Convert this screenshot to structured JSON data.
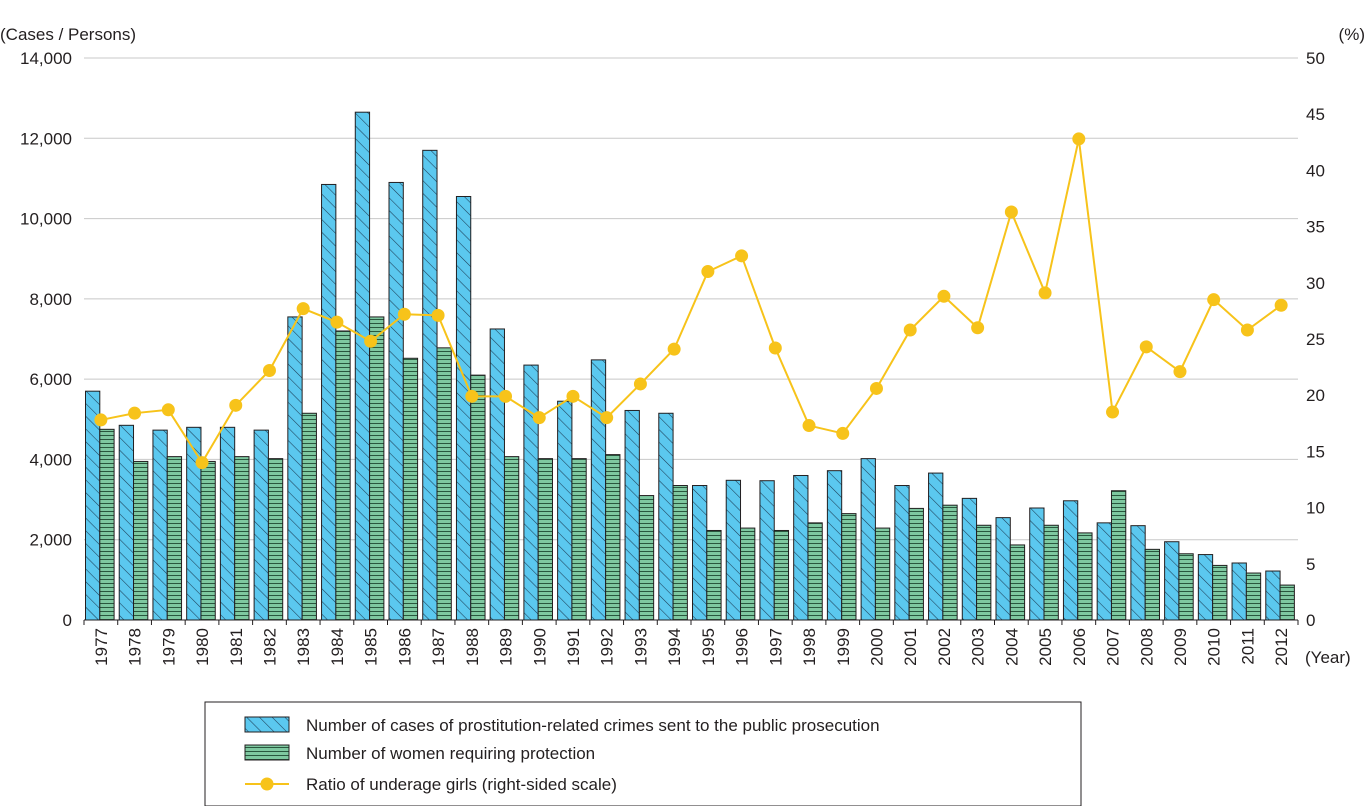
{
  "chart_data": {
    "type": "bar",
    "left_axis_unit": "(Cases / Persons)",
    "right_axis_unit": "(%)",
    "x_axis_unit": "(Year)",
    "categories": [
      "1977",
      "1978",
      "1979",
      "1980",
      "1981",
      "1982",
      "1983",
      "1984",
      "1985",
      "1986",
      "1987",
      "1988",
      "1989",
      "1990",
      "1991",
      "1992",
      "1993",
      "1994",
      "1995",
      "1996",
      "1997",
      "1998",
      "1999",
      "2000",
      "2001",
      "2002",
      "2003",
      "2004",
      "2005",
      "2006",
      "2007",
      "2008",
      "2009",
      "2010",
      "2011",
      "2012"
    ],
    "ylim_left": [
      0,
      14000
    ],
    "ylim_right": [
      0,
      50
    ],
    "yticks_left": [
      "0",
      "2,000",
      "4,000",
      "6,000",
      "8,000",
      "10,000",
      "12,000",
      "14,000"
    ],
    "yticks_right": [
      "0",
      "5",
      "10",
      "15",
      "20",
      "25",
      "30",
      "35",
      "40",
      "45",
      "50"
    ],
    "grid": true,
    "legend_position": "bottom-center",
    "series": [
      {
        "name": "Number of cases of prostitution-related crimes sent to the public prosecution",
        "kind": "bar",
        "axis": "left",
        "color": "#5bc8ef",
        "pattern": "diagonal-hatch",
        "values": [
          5700,
          4850,
          4730,
          4800,
          4800,
          4730,
          7550,
          10850,
          12650,
          10900,
          11700,
          10550,
          7250,
          6350,
          5450,
          6480,
          5220,
          5150,
          3350,
          3480,
          3470,
          3600,
          3720,
          4020,
          3350,
          3660,
          3030,
          2550,
          2790,
          2970,
          2420,
          2350,
          1950,
          1630,
          1420,
          1220
        ]
      },
      {
        "name": "Number of women requiring protection",
        "kind": "bar",
        "axis": "left",
        "color": "#7ec8a0",
        "pattern": "horizontal-hatch",
        "values": [
          4750,
          3950,
          4070,
          3950,
          4070,
          4020,
          5150,
          7200,
          7550,
          6520,
          6780,
          6100,
          4070,
          4020,
          4020,
          4120,
          3100,
          3350,
          2230,
          2290,
          2230,
          2420,
          2650,
          2290,
          2780,
          2860,
          2360,
          1870,
          2360,
          2170,
          3220,
          1760,
          1650,
          1360,
          1170,
          870
        ]
      },
      {
        "name": "Ratio of underage girls (right-sided scale)",
        "kind": "line",
        "axis": "right",
        "color": "#f7c31a",
        "values": [
          17.8,
          18.4,
          18.7,
          14.0,
          19.1,
          22.2,
          27.7,
          26.5,
          24.8,
          27.2,
          27.1,
          19.9,
          19.9,
          18.0,
          19.9,
          18.0,
          21.0,
          24.1,
          31.0,
          32.4,
          24.2,
          17.3,
          16.6,
          20.6,
          25.8,
          28.8,
          26.0,
          36.3,
          29.1,
          42.8,
          18.5,
          24.3,
          22.1,
          28.5,
          25.8,
          28.0
        ]
      }
    ]
  }
}
